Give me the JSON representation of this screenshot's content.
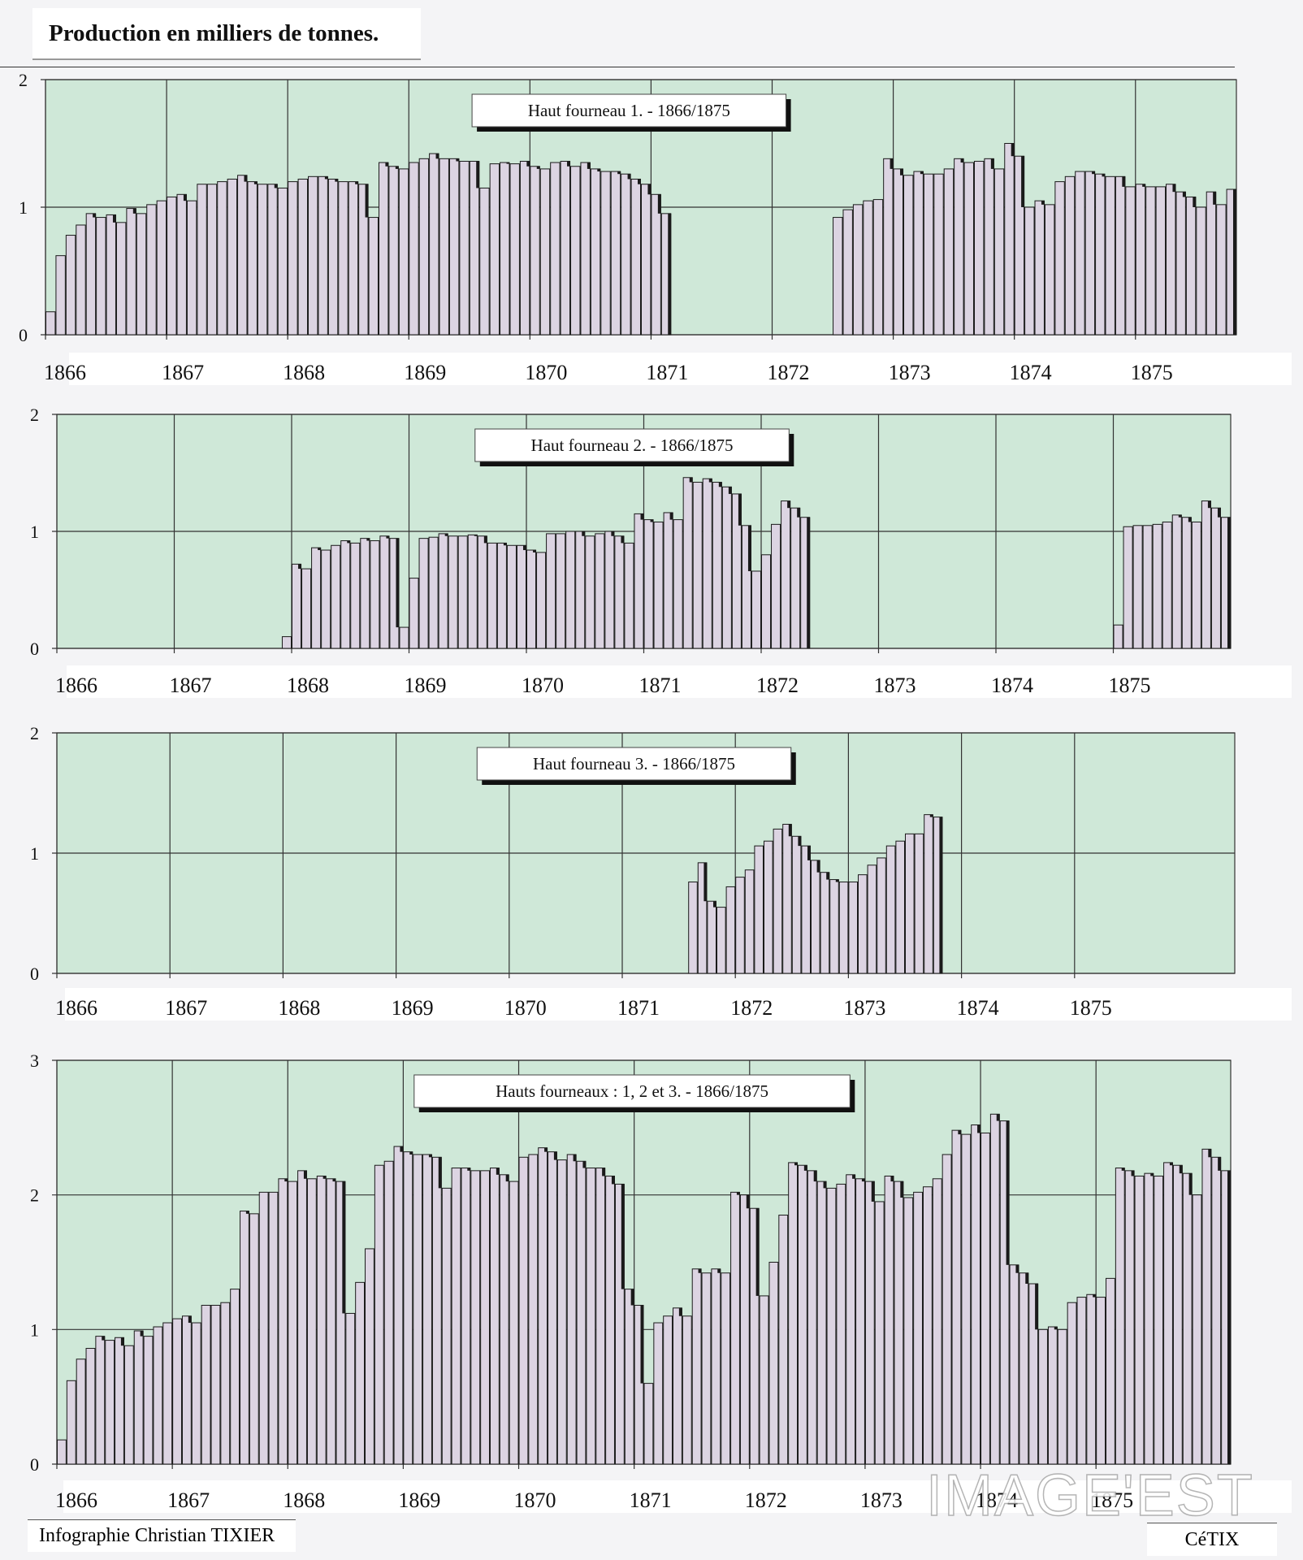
{
  "header": {
    "title": "Production en milliers de tonnes."
  },
  "footer": {
    "credit": "Infographie Christian TIXIER",
    "logo": "CéTIX"
  },
  "watermark": "IMAGE'EST",
  "colors": {
    "plot_bg": "#cfe8d8",
    "bar_fill": "#dcd4e2",
    "bar_edge": "#1a1a1a",
    "grid": "#333333"
  },
  "chart_data": [
    {
      "type": "bar",
      "title": "Haut fourneau 1. -  1866/1875",
      "x_ticks": [
        "1866",
        "1867",
        "1868",
        "1869",
        "1870",
        "1871",
        "1872",
        "1873",
        "1874",
        "1875"
      ],
      "ylim": [
        0,
        2
      ],
      "y_ticks": [
        "0",
        "1",
        "2"
      ],
      "grid": true,
      "months_per_year": 12,
      "values": [
        0.18,
        0.62,
        0.78,
        0.86,
        0.95,
        0.92,
        0.94,
        0.88,
        0.99,
        0.95,
        1.02,
        1.05,
        1.08,
        1.1,
        1.05,
        1.18,
        1.18,
        1.2,
        1.22,
        1.25,
        1.2,
        1.18,
        1.18,
        1.15,
        1.2,
        1.22,
        1.24,
        1.24,
        1.22,
        1.2,
        1.2,
        1.18,
        0.92,
        1.35,
        1.32,
        1.3,
        1.35,
        1.38,
        1.42,
        1.38,
        1.38,
        1.36,
        1.36,
        1.15,
        1.34,
        1.35,
        1.34,
        1.36,
        1.32,
        1.3,
        1.35,
        1.36,
        1.32,
        1.35,
        1.3,
        1.28,
        1.28,
        1.26,
        1.22,
        1.18,
        1.1,
        0.95,
        0,
        0,
        0,
        0,
        0,
        0,
        0,
        0,
        0,
        0,
        0,
        0,
        0,
        0,
        0,
        0,
        0.92,
        0.98,
        1.02,
        1.05,
        1.06,
        1.38,
        1.3,
        1.25,
        1.28,
        1.26,
        1.26,
        1.3,
        1.38,
        1.35,
        1.36,
        1.38,
        1.3,
        1.5,
        1.4,
        1.0,
        1.05,
        1.02,
        1.2,
        1.24,
        1.28,
        1.28,
        1.26,
        1.24,
        1.24,
        1.16,
        1.18,
        1.16,
        1.16,
        1.18,
        1.12,
        1.08,
        1.0,
        1.12,
        1.02,
        1.14
      ]
    },
    {
      "type": "bar",
      "title": "Haut fourneau 2. -  1866/1875",
      "x_ticks": [
        "1866",
        "1867",
        "1868",
        "1869",
        "1870",
        "1871",
        "1872",
        "1873",
        "1874",
        "1875"
      ],
      "ylim": [
        0,
        2
      ],
      "y_ticks": [
        "0",
        "1",
        "2"
      ],
      "grid": true,
      "months_per_year": 12,
      "values": [
        0,
        0,
        0,
        0,
        0,
        0,
        0,
        0,
        0,
        0,
        0,
        0,
        0,
        0,
        0,
        0,
        0,
        0,
        0,
        0,
        0,
        0,
        0,
        0.1,
        0.72,
        0.68,
        0.86,
        0.84,
        0.88,
        0.92,
        0.9,
        0.94,
        0.92,
        0.96,
        0.94,
        0.18,
        0.6,
        0.94,
        0.95,
        0.98,
        0.96,
        0.96,
        0.97,
        0.96,
        0.9,
        0.9,
        0.88,
        0.88,
        0.84,
        0.82,
        0.98,
        0.98,
        1.0,
        1.0,
        0.96,
        0.98,
        1.0,
        0.96,
        0.9,
        1.15,
        1.1,
        1.08,
        1.16,
        1.1,
        1.46,
        1.42,
        1.45,
        1.42,
        1.38,
        1.32,
        1.05,
        0.66,
        0.8,
        1.06,
        1.26,
        1.2,
        1.12,
        0,
        0,
        0,
        0,
        0,
        0,
        0,
        0,
        0,
        0,
        0,
        0,
        0,
        0,
        0,
        0,
        0,
        0,
        0,
        0,
        0,
        0,
        0,
        0,
        0,
        0,
        0,
        0,
        0,
        0,
        0,
        0.2,
        1.04,
        1.05,
        1.05,
        1.06,
        1.08,
        1.14,
        1.12,
        1.08,
        1.26,
        1.2,
        1.12
      ]
    },
    {
      "type": "bar",
      "title": "Haut fourneau 3. -  1866/1875",
      "x_ticks": [
        "1866",
        "1867",
        "1868",
        "1869",
        "1870",
        "1871",
        "1872",
        "1873",
        "1874",
        "1875"
      ],
      "ylim": [
        0,
        2
      ],
      "y_ticks": [
        "0",
        "1",
        "2"
      ],
      "grid": true,
      "months_per_year": 12,
      "values": [
        0,
        0,
        0,
        0,
        0,
        0,
        0,
        0,
        0,
        0,
        0,
        0,
        0,
        0,
        0,
        0,
        0,
        0,
        0,
        0,
        0,
        0,
        0,
        0,
        0,
        0,
        0,
        0,
        0,
        0,
        0,
        0,
        0,
        0,
        0,
        0,
        0,
        0,
        0,
        0,
        0,
        0,
        0,
        0,
        0,
        0,
        0,
        0,
        0,
        0,
        0,
        0,
        0,
        0,
        0,
        0,
        0,
        0,
        0,
        0,
        0,
        0,
        0,
        0,
        0,
        0,
        0,
        0.76,
        0.92,
        0.6,
        0.55,
        0.72,
        0.8,
        0.86,
        1.06,
        1.1,
        1.2,
        1.24,
        1.14,
        1.06,
        0.94,
        0.84,
        0.78,
        0.76,
        0.76,
        0.82,
        0.9,
        0.96,
        1.06,
        1.1,
        1.16,
        1.16,
        1.32,
        1.3,
        0,
        0,
        0,
        0,
        0,
        0,
        0,
        0,
        0,
        0,
        0,
        0,
        0,
        0,
        0,
        0,
        0,
        0,
        0,
        0,
        0,
        0,
        0,
        0,
        0,
        0,
        0,
        0,
        0,
        0,
        0
      ]
    },
    {
      "type": "bar",
      "title": "Hauts fourneaux : 1, 2 et 3. -  1866/1875",
      "x_ticks": [
        "1866",
        "1867",
        "1868",
        "1869",
        "1870",
        "1871",
        "1872",
        "1873",
        "1874",
        "1875"
      ],
      "ylim": [
        0,
        3
      ],
      "y_ticks": [
        "0",
        "1",
        "2",
        "3"
      ],
      "grid": true,
      "months_per_year": 12,
      "values": [
        0.18,
        0.62,
        0.78,
        0.86,
        0.95,
        0.92,
        0.94,
        0.88,
        0.99,
        0.95,
        1.02,
        1.05,
        1.08,
        1.1,
        1.05,
        1.18,
        1.18,
        1.2,
        1.3,
        1.88,
        1.86,
        2.02,
        2.02,
        2.12,
        2.1,
        2.18,
        2.12,
        2.14,
        2.12,
        2.1,
        1.12,
        1.35,
        1.6,
        2.22,
        2.25,
        2.36,
        2.32,
        2.3,
        2.3,
        2.28,
        2.05,
        2.2,
        2.2,
        2.18,
        2.18,
        2.2,
        2.15,
        2.1,
        2.28,
        2.3,
        2.35,
        2.32,
        2.26,
        2.3,
        2.25,
        2.2,
        2.2,
        2.14,
        2.08,
        1.3,
        1.18,
        0.6,
        1.05,
        1.1,
        1.16,
        1.1,
        1.45,
        1.42,
        1.45,
        1.42,
        2.02,
        2.0,
        1.9,
        1.25,
        1.5,
        1.85,
        2.24,
        2.22,
        2.18,
        2.1,
        2.05,
        2.08,
        2.15,
        2.12,
        2.1,
        1.95,
        2.14,
        2.1,
        1.98,
        2.02,
        2.06,
        2.12,
        2.3,
        2.48,
        2.45,
        2.52,
        2.46,
        2.6,
        2.55,
        1.48,
        1.42,
        1.34,
        1.0,
        1.02,
        1.0,
        1.2,
        1.24,
        1.26,
        1.24,
        1.38,
        2.2,
        2.18,
        2.14,
        2.16,
        2.14,
        2.24,
        2.22,
        2.16,
        2.0,
        2.34,
        2.28,
        2.18
      ]
    }
  ]
}
